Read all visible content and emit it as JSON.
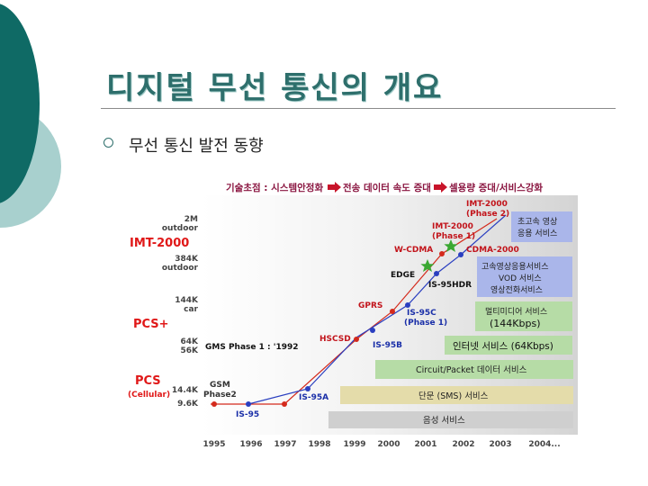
{
  "slide": {
    "title": "디지털 무선 통신의 개요",
    "bullet": "무선 통신 발전 동향"
  },
  "diagram": {
    "header": {
      "part1": "기술초점 : 시스템안정화",
      "part2": "전송 데이터 속도 증대",
      "part3": "셀용량 증대/서비스강화"
    },
    "years": [
      "1995",
      "1996",
      "1997",
      "1998",
      "1999",
      "2000",
      "2001",
      "2002",
      "2003",
      "2004..."
    ],
    "speed_labels": [
      {
        "l1": "2M",
        "l2": "outdoor"
      },
      {
        "l1": "384K",
        "l2": "outdoor"
      },
      {
        "l1": "144K",
        "l2": "car"
      },
      {
        "l1": "64K",
        "l2": "56K"
      },
      {
        "l1": "14.4K",
        "l2": "9.6K"
      }
    ],
    "categories": {
      "imt": "IMT-2000",
      "pcs_plus": "PCS+",
      "pcs": "PCS",
      "pcs_sub": "(Cellular)"
    },
    "gsm_phase1": "GMS Phase 1 : '1992",
    "tech_labels": {
      "gsm1": "GSM",
      "gsm2": "Phase2",
      "is95": "IS-95",
      "is95a": "IS-95A",
      "hscsd": "HSCSD",
      "is95b": "IS-95B",
      "gprs": "GPRS",
      "is95c1": "IS-95C",
      "is95c2": "(Phase 1)",
      "edge": "EDGE",
      "is95hdr": "IS-95HDR",
      "wcdma": "W-CDMA",
      "cdma2000": "CDMA-2000",
      "imt1a": "IMT-2000",
      "imt1b": "(Phase 1)",
      "imt2a": "IMT-2000",
      "imt2b": "(Phase 2)"
    },
    "services": {
      "s1a": "초고속 영상",
      "s1b": "응용 서비스",
      "s2a": "고속영상응용서비스",
      "s2b": "VOD 서비스",
      "s2c": "영상전화서비스",
      "s3a": "멀티미디어 서비스",
      "s3b": "(144Kbps)",
      "s4": "인터넷 서비스 (64Kbps)",
      "s5": "Circuit/Packet 데이터 서비스",
      "s6": "단문 (SMS) 서비스",
      "s7": "음성 서비스"
    },
    "colors": {
      "red_line": "#d42a1c",
      "blue_line": "#2a3fc0",
      "category": "#e01818",
      "tech_red": "#c2141b",
      "tech_blue": "#1a2fa8",
      "band_gray": "#cfcfcf",
      "band_tan": "#e4dcaa",
      "band_green": "#b6dca6",
      "band_blue": "#aab6ea",
      "header_text": "#8a1540",
      "star": "#3aa832"
    }
  }
}
